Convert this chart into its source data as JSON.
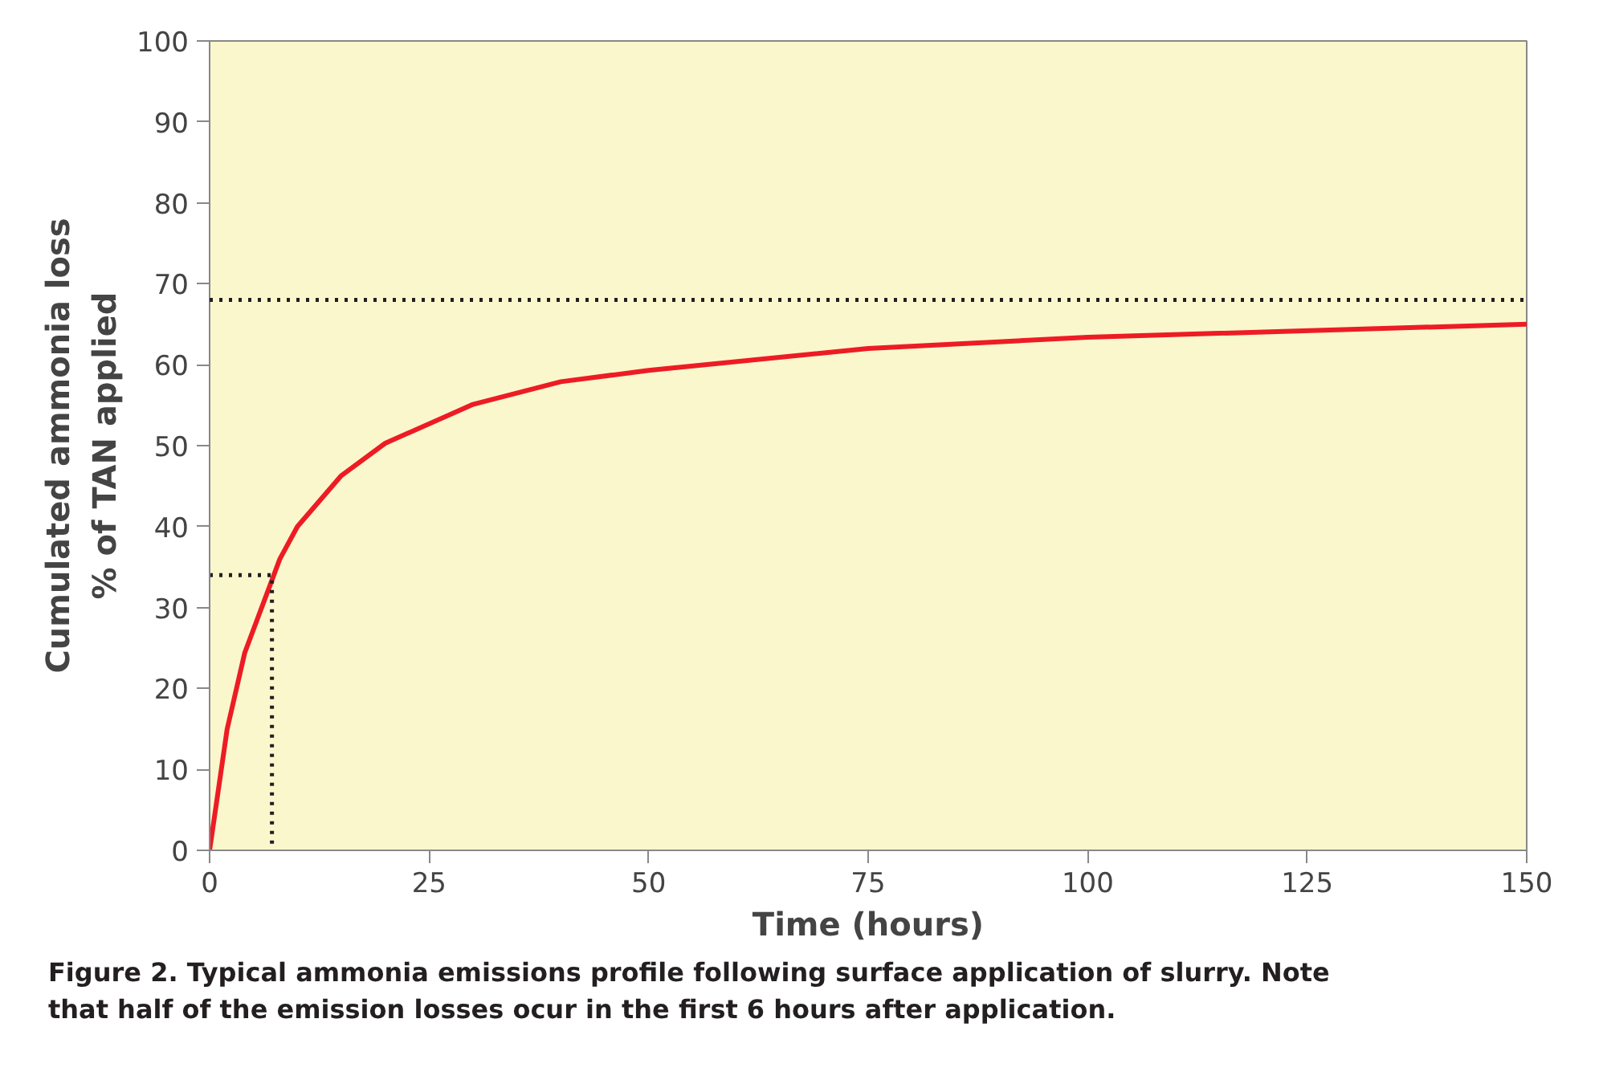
{
  "chart_data": {
    "type": "line",
    "xlabel": "Time (hours)",
    "ylabel": "Cumulated ammonia loss\n% of TAN applied",
    "series": [
      {
        "color": "#ed1c24",
        "x": [
          0,
          2,
          4,
          8,
          10,
          15,
          20,
          30,
          40,
          50,
          75,
          100,
          150
        ],
        "values": [
          0,
          15,
          24.4,
          36,
          40,
          46.3,
          50.3,
          55.1,
          57.9,
          59.3,
          62,
          63.4,
          65
        ],
        "line_style": "solid"
      },
      {
        "color": "#231f20",
        "x": [
          0,
          7.1,
          7.1
        ],
        "values": [
          34,
          34,
          0
        ],
        "line_style": "dotted"
      }
    ],
    "ref_lines": [
      {
        "axis": "y",
        "value": 68,
        "color": "#231f20",
        "line_style": "dotted"
      }
    ],
    "xlim": [
      0,
      150
    ],
    "xticks": [
      0,
      25,
      50,
      75,
      100,
      125,
      150
    ],
    "ylim": [
      0,
      100
    ],
    "yticks": [
      0,
      10,
      20,
      30,
      40,
      50,
      60,
      70,
      80,
      90,
      100
    ],
    "grid": false,
    "marker": "none",
    "annotations": [
      "Figure 2. Typical ammonia emissions profile following surface application of slurry. Note\nthat half of the emission losses ocur in the first 6 hours after application."
    ]
  }
}
